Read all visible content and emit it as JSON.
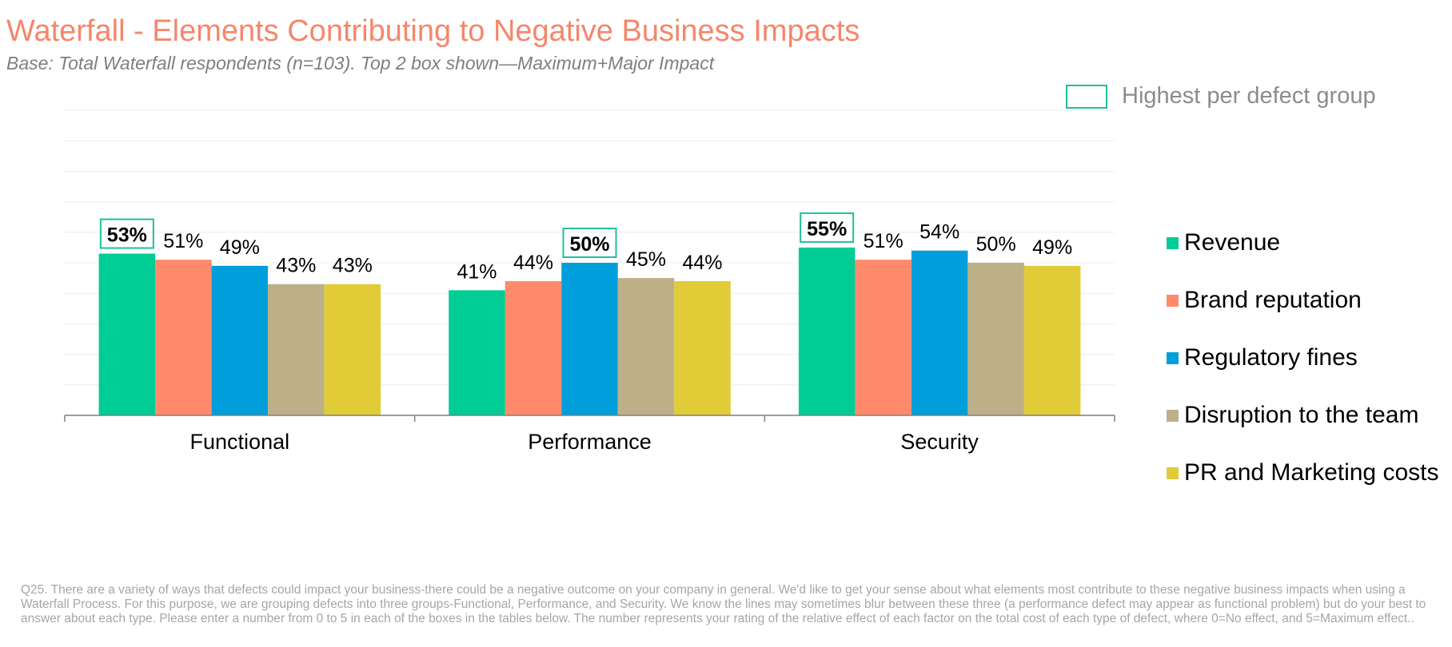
{
  "title": "Waterfall - Elements Contributing to Negative Business Impacts",
  "subtitle": "Base: Total Waterfall respondents (n=103). Top 2 box shown—Maximum+Major Impact",
  "highlight_legend": {
    "label": "Highest per defect group",
    "color": "#1fbf9a"
  },
  "footnote": "Q25. There are a variety of ways that defects could impact your business-there could be a negative outcome on your company in general. We'd like to get your sense about what elements most contribute to these negative business impacts when using a Waterfall Process. For this purpose, we are grouping defects into three groups-Functional, Performance, and Security. We know the lines may sometimes blur between these three (a performance defect may appear as functional problem) but do your best to answer about each type. Please enter a number from 0 to 5 in each of the boxes in the tables below. The number represents your rating of the relative effect of each factor on the total cost of each type of defect, where 0=No effect, and 5=Maximum effect..",
  "chart_data": {
    "type": "bar",
    "categories": [
      "Functional",
      "Performance",
      "Security"
    ],
    "series": [
      {
        "name": "Revenue",
        "color": "#00cc96",
        "values": [
          53,
          41,
          55
        ]
      },
      {
        "name": "Brand reputation",
        "color": "#ff8a6b",
        "values": [
          51,
          44,
          51
        ]
      },
      {
        "name": "Regulatory fines",
        "color": "#009fdb",
        "values": [
          49,
          50,
          54
        ]
      },
      {
        "name": "Disruption to the team",
        "color": "#bdb088",
        "values": [
          43,
          45,
          50
        ]
      },
      {
        "name": "PR and Marketing costs",
        "color": "#e1cc38",
        "values": [
          43,
          44,
          49
        ]
      }
    ],
    "value_suffix": "%",
    "highlighted": [
      {
        "category": 0,
        "series": 0
      },
      {
        "category": 1,
        "series": 2
      },
      {
        "category": 2,
        "series": 0
      }
    ],
    "ylim": [
      0,
      100
    ],
    "grid": true,
    "legend_position": "right"
  }
}
